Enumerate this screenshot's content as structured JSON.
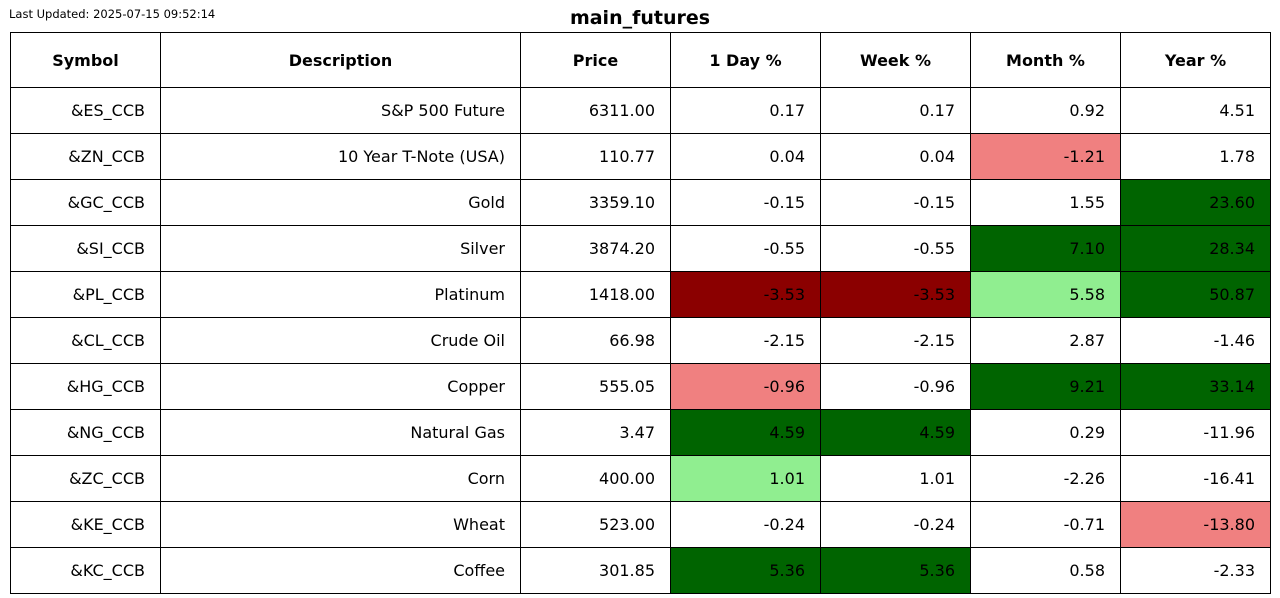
{
  "last_updated": "Last Updated: 2025-07-15 09:52:14",
  "title": "main_futures",
  "chart_data": {
    "type": "table",
    "columns": [
      "Symbol",
      "Description",
      "Price",
      "1 Day %",
      "Week %",
      "Month %",
      "Year %"
    ],
    "rows": [
      {
        "symbol": "&ES_CCB",
        "description": "S&P 500 Future",
        "price": "6311.00",
        "day": "0.17",
        "week": "0.17",
        "month": "0.92",
        "year": "4.51"
      },
      {
        "symbol": "&ZN_CCB",
        "description": "10 Year T-Note (USA)",
        "price": "110.77",
        "day": "0.04",
        "week": "0.04",
        "month": "-1.21",
        "year": "1.78"
      },
      {
        "symbol": "&GC_CCB",
        "description": "Gold",
        "price": "3359.10",
        "day": "-0.15",
        "week": "-0.15",
        "month": "1.55",
        "year": "23.60"
      },
      {
        "symbol": "&SI_CCB",
        "description": "Silver",
        "price": "3874.20",
        "day": "-0.55",
        "week": "-0.55",
        "month": "7.10",
        "year": "28.34"
      },
      {
        "symbol": "&PL_CCB",
        "description": "Platinum",
        "price": "1418.00",
        "day": "-3.53",
        "week": "-3.53",
        "month": "5.58",
        "year": "50.87"
      },
      {
        "symbol": "&CL_CCB",
        "description": "Crude Oil",
        "price": "66.98",
        "day": "-2.15",
        "week": "-2.15",
        "month": "2.87",
        "year": "-1.46"
      },
      {
        "symbol": "&HG_CCB",
        "description": "Copper",
        "price": "555.05",
        "day": "-0.96",
        "week": "-0.96",
        "month": "9.21",
        "year": "33.14"
      },
      {
        "symbol": "&NG_CCB",
        "description": "Natural Gas",
        "price": "3.47",
        "day": "4.59",
        "week": "4.59",
        "month": "0.29",
        "year": "-11.96"
      },
      {
        "symbol": "&ZC_CCB",
        "description": "Corn",
        "price": "400.00",
        "day": "1.01",
        "week": "1.01",
        "month": "-2.26",
        "year": "-16.41"
      },
      {
        "symbol": "&KE_CCB",
        "description": "Wheat",
        "price": "523.00",
        "day": "-0.24",
        "week": "-0.24",
        "month": "-0.71",
        "year": "-13.80"
      },
      {
        "symbol": "&KC_CCB",
        "description": "Coffee",
        "price": "301.85",
        "day": "5.36",
        "week": "5.36",
        "month": "0.58",
        "year": "-2.33"
      }
    ],
    "cell_colors": {
      "white": "#ffffff",
      "light_green": "#90ee90",
      "dark_green": "#006400",
      "light_red": "#f08080",
      "dark_red": "#8b0000"
    },
    "color_map": [
      {
        "day": "white",
        "week": "white",
        "month": "white",
        "year": "white"
      },
      {
        "day": "white",
        "week": "white",
        "month": "light_red",
        "year": "white"
      },
      {
        "day": "white",
        "week": "white",
        "month": "white",
        "year": "dark_green"
      },
      {
        "day": "white",
        "week": "white",
        "month": "dark_green",
        "year": "dark_green"
      },
      {
        "day": "dark_red",
        "week": "dark_red",
        "month": "light_green",
        "year": "dark_green"
      },
      {
        "day": "white",
        "week": "white",
        "month": "white",
        "year": "white"
      },
      {
        "day": "light_red",
        "week": "white",
        "month": "dark_green",
        "year": "dark_green"
      },
      {
        "day": "dark_green",
        "week": "dark_green",
        "month": "white",
        "year": "white"
      },
      {
        "day": "light_green",
        "week": "white",
        "month": "white",
        "year": "white"
      },
      {
        "day": "white",
        "week": "white",
        "month": "white",
        "year": "light_red"
      },
      {
        "day": "dark_green",
        "week": "dark_green",
        "month": "white",
        "year": "white"
      }
    ]
  }
}
